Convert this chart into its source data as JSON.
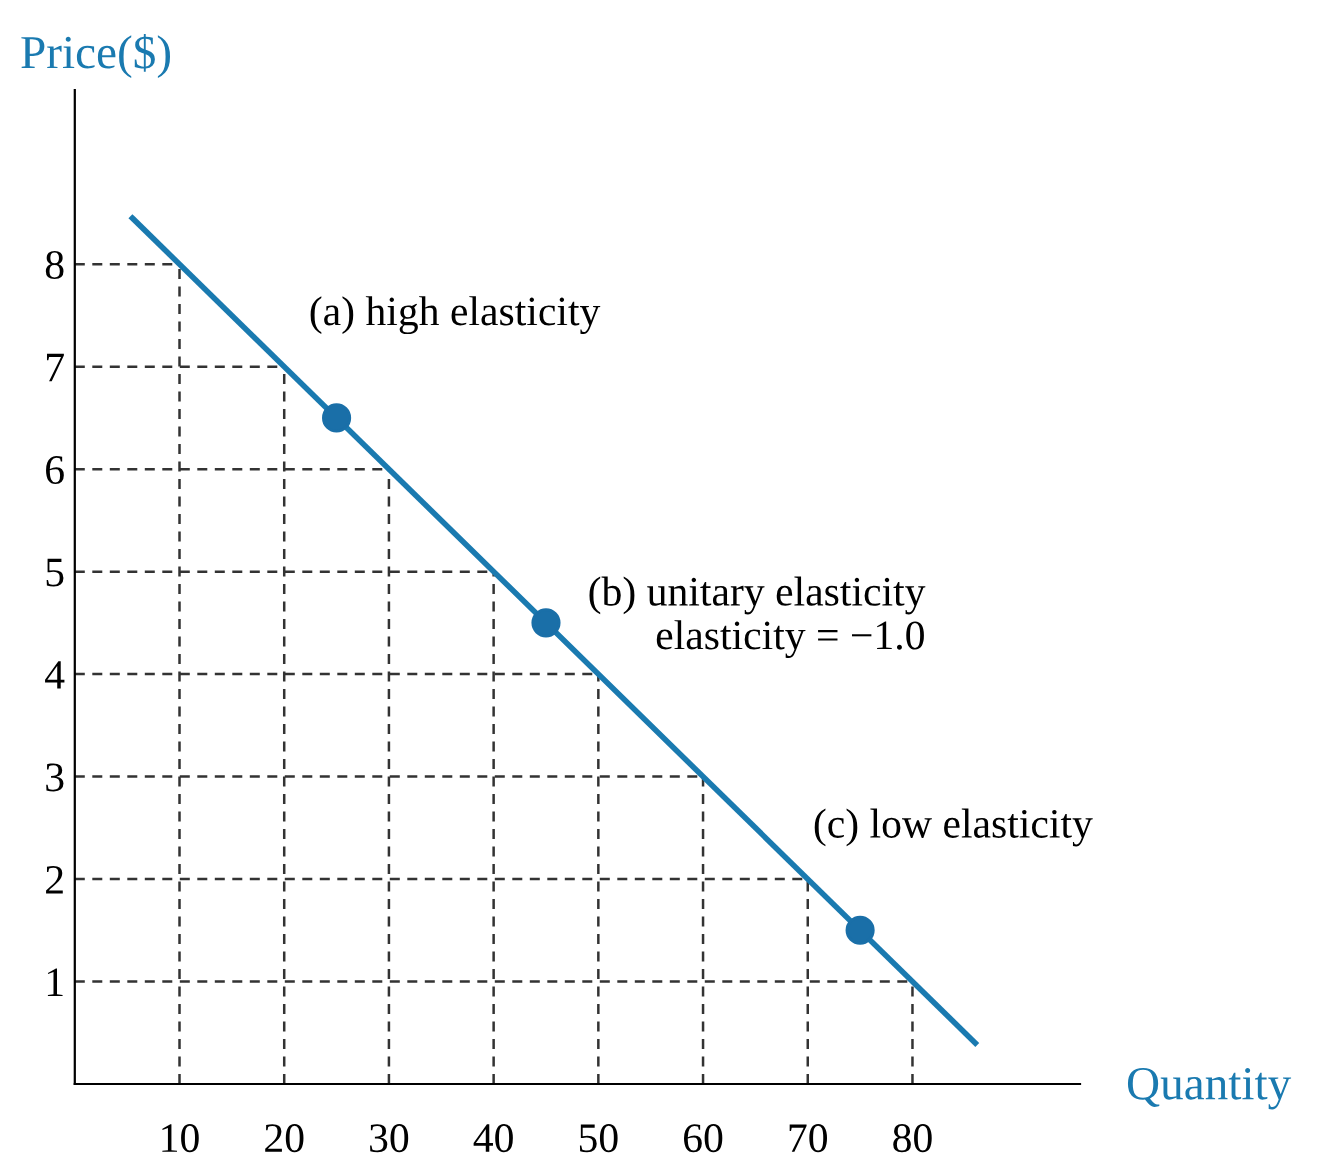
{
  "chart_data": {
    "type": "line",
    "xlabel": "Quantity",
    "ylabel": "Price($)",
    "xlim": [
      0,
      96
    ],
    "ylim": [
      0,
      9.7
    ],
    "xticks": [
      10,
      20,
      30,
      40,
      50,
      60,
      70,
      80
    ],
    "yticks": [
      1,
      2,
      3,
      4,
      5,
      6,
      7,
      8
    ],
    "grid": true,
    "series": [
      {
        "color": "#1a7ab0",
        "marker": "none",
        "x": [
          5.5,
          86
        ],
        "values": [
          8.45,
          0.4
        ]
      },
      {
        "type": "scatter",
        "color": "#1a6fa8",
        "marker": "circle",
        "x": [
          25,
          45,
          75
        ],
        "values": [
          6.5,
          4.5,
          1.5
        ]
      }
    ],
    "annotations": [
      {
        "text": "(a) high elasticity",
        "x": 25,
        "y": 6.5
      },
      {
        "text": "(b) unitary elasticity\nelasticity = −1.0",
        "x": 45,
        "y": 4.5
      },
      {
        "text": "(c) low elasticity",
        "x": 75,
        "y": 1.5
      }
    ]
  }
}
